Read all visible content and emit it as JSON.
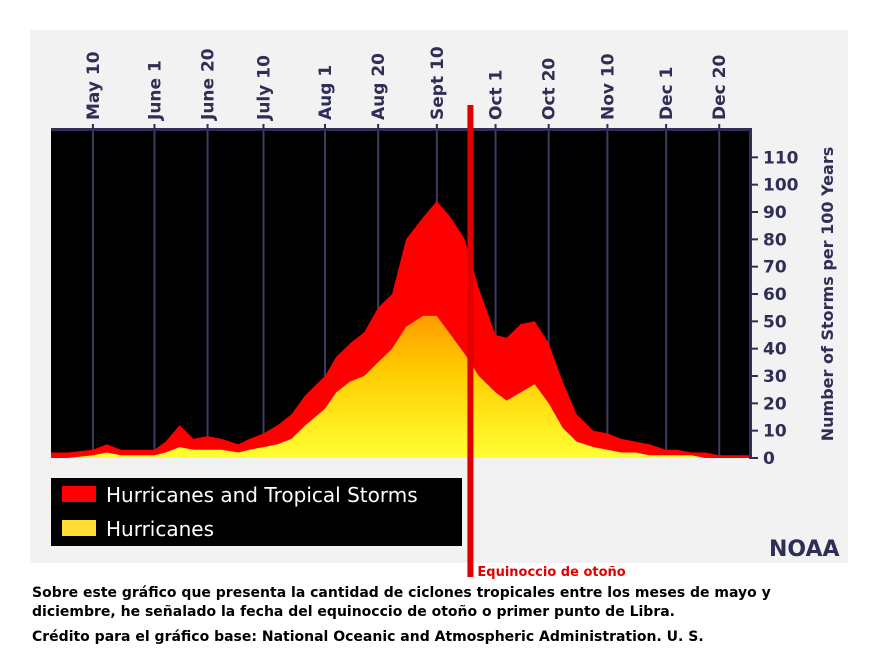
{
  "chart_data": {
    "type": "area",
    "title": "",
    "xlabel": "",
    "ylabel": "Number of Storms per 100 Years",
    "ylim": [
      0,
      120
    ],
    "y_ticks": [
      0,
      10,
      20,
      30,
      40,
      50,
      60,
      70,
      80,
      90,
      100,
      110
    ],
    "x_range": [
      "Apr 25",
      "Dec 31"
    ],
    "x_ticks": [
      "May 10",
      "June 1",
      "June 20",
      "July 10",
      "Aug 1",
      "Aug 20",
      "Sept 10",
      "Oct 1",
      "Oct 20",
      "Nov 10",
      "Dec 1",
      "Dec 20"
    ],
    "grid": "vertical lines at each date tick",
    "x_dates": [
      "Apr 25",
      "May 1",
      "May 10",
      "May 15",
      "May 20",
      "May 25",
      "June 1",
      "June 5",
      "June 10",
      "June 15",
      "June 20",
      "June 25",
      "July 1",
      "July 5",
      "July 10",
      "July 15",
      "July 20",
      "July 25",
      "Aug 1",
      "Aug 5",
      "Aug 10",
      "Aug 15",
      "Aug 20",
      "Aug 25",
      "Aug 30",
      "Sept 5",
      "Sept 10",
      "Sept 15",
      "Sept 20",
      "Sept 25",
      "Oct 1",
      "Oct 5",
      "Oct 10",
      "Oct 15",
      "Oct 20",
      "Oct 25",
      "Oct 30",
      "Nov 5",
      "Nov 10",
      "Nov 15",
      "Nov 20",
      "Nov 25",
      "Dec 1",
      "Dec 5",
      "Dec 10",
      "Dec 15",
      "Dec 20",
      "Dec 25",
      "Dec 31"
    ],
    "series": [
      {
        "name": "Hurricanes and Tropical Storms",
        "color": "#ff0000",
        "values": [
          2,
          2,
          3,
          5,
          3,
          3,
          3,
          6,
          12,
          7,
          8,
          7,
          5,
          7,
          9,
          12,
          16,
          23,
          30,
          37,
          42,
          46,
          55,
          60,
          80,
          88,
          94,
          88,
          80,
          62,
          45,
          44,
          49,
          50,
          42,
          28,
          16,
          10,
          9,
          7,
          6,
          5,
          3,
          3,
          2,
          2,
          1,
          1,
          1
        ]
      },
      {
        "name": "Hurricanes",
        "color": "#ffdd33",
        "values": [
          0,
          0,
          1,
          2,
          1,
          1,
          1,
          2,
          4,
          3,
          3,
          3,
          2,
          3,
          4,
          5,
          7,
          12,
          18,
          24,
          28,
          30,
          35,
          40,
          48,
          52,
          52,
          45,
          38,
          30,
          24,
          21,
          24,
          27,
          20,
          11,
          6,
          4,
          3,
          2,
          2,
          1,
          1,
          1,
          1,
          0,
          0,
          0,
          0
        ]
      }
    ],
    "legend_position": "bottom-left",
    "annotations": [
      {
        "text": "Equinoccio de otoño",
        "date": "Sept 22",
        "color": "#e00000"
      }
    ],
    "credit": "NOAA"
  },
  "caption": "Sobre este gráfico que presenta la cantidad de ciclones tropicales entre los meses de mayo y diciembre, he señalado la fecha del equinoccio de otoño o primer punto de Libra.",
  "credit_line": "Crédito para el gráfico base: National Oceanic and Atmospheric Administration. U. S."
}
